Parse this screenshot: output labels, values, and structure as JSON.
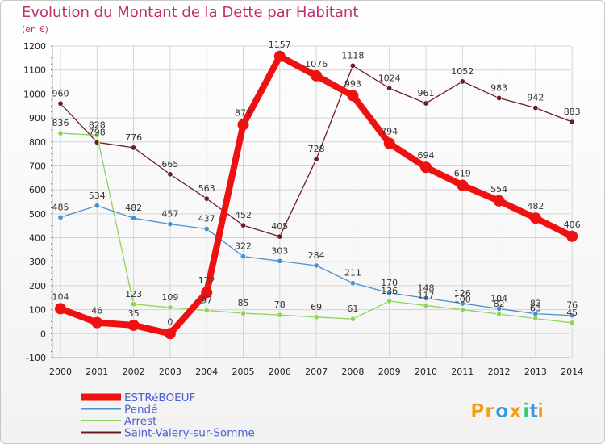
{
  "chart_data": {
    "type": "line",
    "title": "Evolution du Montant de la Dette par Habitant",
    "subtitle": "(en €)",
    "x": [
      "2000",
      "2001",
      "2002",
      "2003",
      "2004",
      "2005",
      "2006",
      "2007",
      "2008",
      "2009",
      "2010",
      "2011",
      "2012",
      "2013",
      "2014"
    ],
    "ylim": [
      -100,
      1200
    ],
    "yticks": [
      -100,
      0,
      100,
      200,
      300,
      400,
      500,
      600,
      700,
      800,
      900,
      1000,
      1100,
      1200
    ],
    "grid": true,
    "legend_position": "bottom-left",
    "series": [
      {
        "name": "Saint-Valery-sur-Somme",
        "color": "#6b1d24",
        "values": [
          960,
          798,
          776,
          665,
          563,
          452,
          405,
          728,
          1118,
          1024,
          961,
          1052,
          983,
          942,
          883
        ],
        "labels": [
          "960",
          "798",
          "776",
          "665",
          "563",
          "452",
          "405",
          "728",
          "1118",
          "1024",
          "961",
          "1052",
          "983",
          "942",
          "883"
        ]
      },
      {
        "name": "Arrest",
        "color": "#8fd45a",
        "values": [
          836,
          828,
          123,
          109,
          97,
          85,
          78,
          69,
          61,
          136,
          117,
          100,
          82,
          63,
          45
        ],
        "labels": [
          "836",
          "828",
          "123",
          "109",
          "97",
          "85",
          "78",
          "69",
          "61",
          "136",
          "117",
          "100",
          "82",
          "63",
          "45"
        ]
      },
      {
        "name": "Pendé",
        "color": "#4a8fd1",
        "values": [
          485,
          534,
          482,
          457,
          437,
          322,
          303,
          284,
          211,
          170,
          148,
          126,
          104,
          83,
          76
        ],
        "labels": [
          "485",
          "534",
          "482",
          "457",
          "437",
          "322",
          "303",
          "284",
          "211",
          "170",
          "148",
          "126",
          "104",
          "83",
          "76"
        ]
      },
      {
        "name": "ESTRéBOEUF",
        "color": "#ee1111",
        "values": [
          104,
          46,
          35,
          0,
          172,
          872,
          1157,
          1076,
          993,
          794,
          694,
          619,
          554,
          482,
          406
        ],
        "labels": [
          "104",
          "46",
          "35",
          "0",
          "172",
          "872",
          "1157",
          "1076",
          "993",
          "794",
          "694",
          "619",
          "554",
          "482",
          "406"
        ]
      }
    ]
  },
  "legend": [
    {
      "name": "ESTRéBOEUF",
      "color": "#ee1111",
      "thickness": "thick"
    },
    {
      "name": "Pendé",
      "color": "#4a8fd1",
      "thickness": "thin"
    },
    {
      "name": "Arrest",
      "color": "#8fd45a",
      "thickness": "thin"
    },
    {
      "name": "Saint-Valery-sur-Somme",
      "color": "#6b1d24",
      "thickness": "thin"
    }
  ],
  "logo": {
    "text": "Proxiti",
    "letters": [
      "P",
      "r",
      "o",
      "x",
      "i",
      "t",
      "i"
    ],
    "colors": [
      "#f39c12",
      "#f39c12",
      "#3498db",
      "#f39c12",
      "#2ecc71",
      "#3498db",
      "#f39c12"
    ]
  },
  "colors": {
    "title": "#c0306f",
    "subtitle": "#c0306f",
    "axis_text": "#222222",
    "legend_text": "#4a5fd1",
    "grid": "#d4d4d4"
  }
}
